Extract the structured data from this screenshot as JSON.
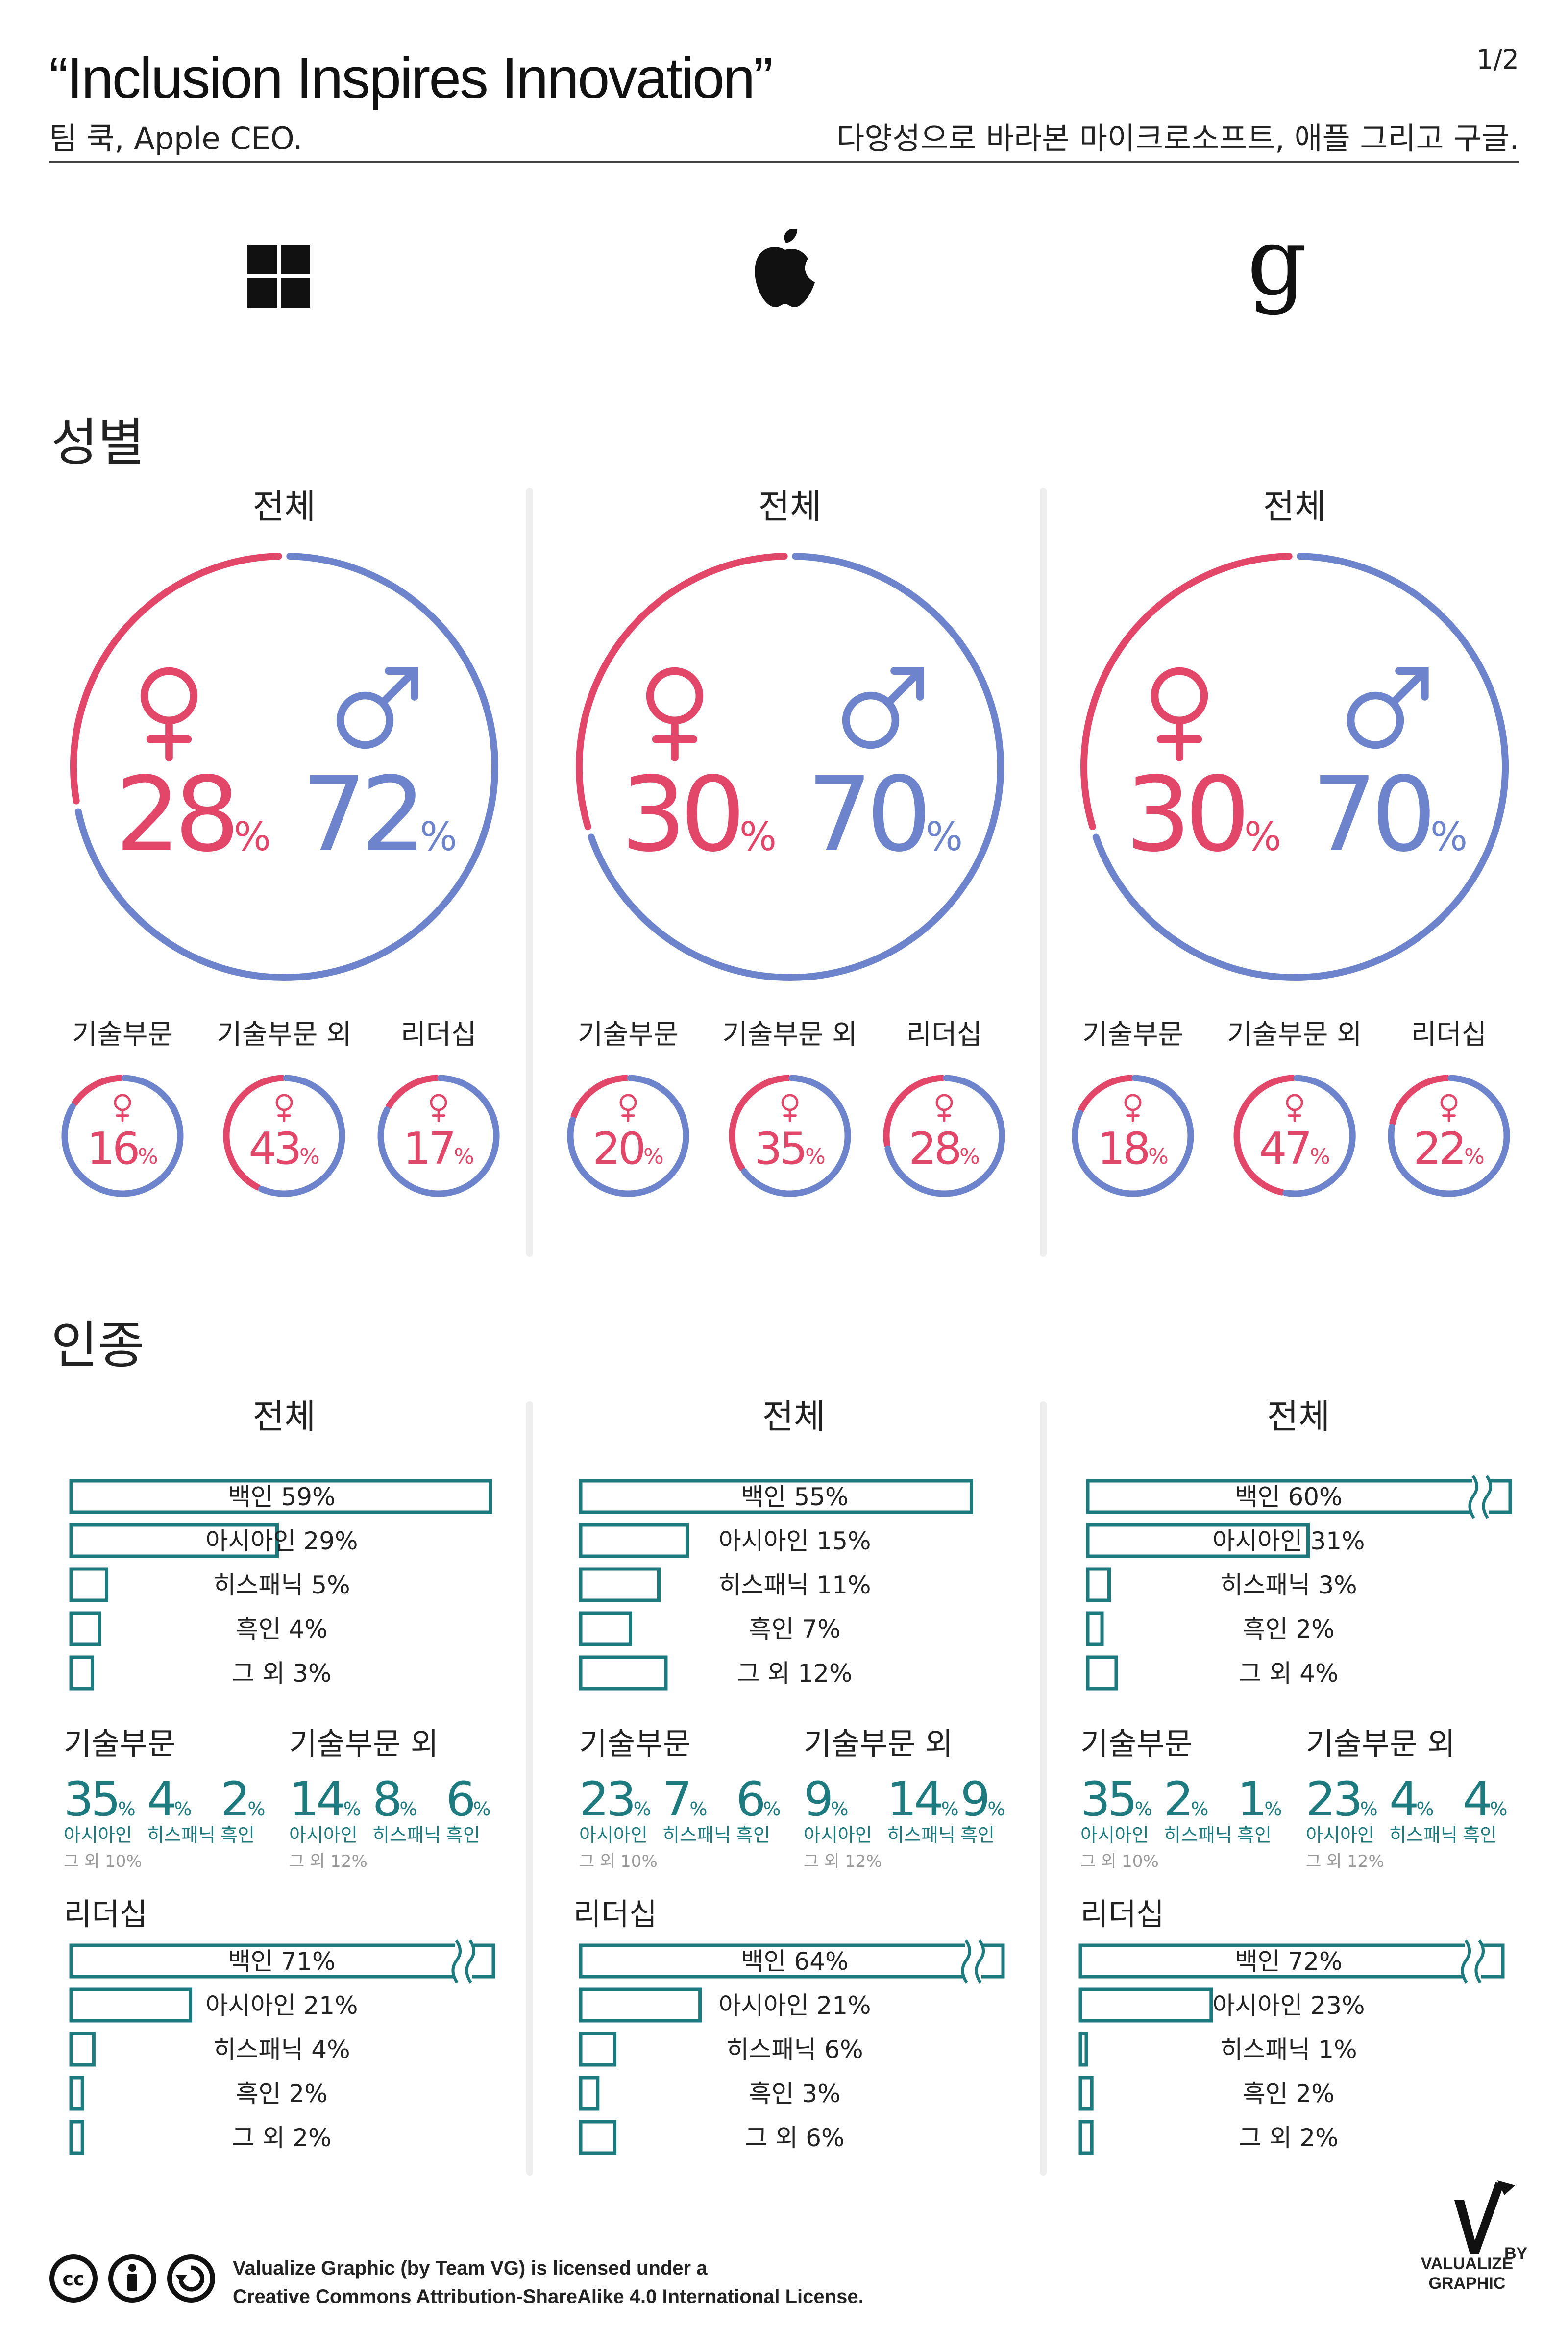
{
  "header": {
    "title": "“Inclusion Inspires Innovation”",
    "author": "팀 쿡, Apple CEO.",
    "page": "1/2",
    "subtitle": "다양성으로 바라본 마이크로소프트, 애플 그리고 구글."
  },
  "colors": {
    "female": "#e2476a",
    "male": "#6d84cc",
    "teal": "#1d7b80",
    "gray": "#9a9a9a"
  },
  "companies": [
    {
      "name": "Microsoft",
      "icon": "microsoft-windows-icon"
    },
    {
      "name": "Apple",
      "icon": "apple-logo-icon"
    },
    {
      "name": "Google",
      "icon": "google-g-icon",
      "glyph": "g"
    }
  ],
  "sections": {
    "gender": "성별",
    "race": "인종"
  },
  "labels": {
    "total": "전체",
    "tech": "기술부문",
    "nontech": "기술부문 외",
    "leadership": "리더십",
    "female_symbol": "♀",
    "male_symbol": "♂",
    "percent": "%"
  },
  "chart_data": [
    {
      "type": "pie",
      "title": "전체",
      "company": "Microsoft",
      "female": 28,
      "male": 72,
      "sub": [
        {
          "label": "기술부문",
          "female": 16
        },
        {
          "label": "기술부문 외",
          "female": 43
        },
        {
          "label": "리더십",
          "female": 17
        }
      ]
    },
    {
      "type": "pie",
      "title": "전체",
      "company": "Apple",
      "female": 30,
      "male": 70,
      "sub": [
        {
          "label": "기술부문",
          "female": 20
        },
        {
          "label": "기술부문 외",
          "female": 35
        },
        {
          "label": "리더십",
          "female": 28
        }
      ]
    },
    {
      "type": "pie",
      "title": "전체",
      "company": "Google",
      "female": 30,
      "male": 70,
      "sub": [
        {
          "label": "기술부문",
          "female": 18
        },
        {
          "label": "기술부문 외",
          "female": 47
        },
        {
          "label": "리더십",
          "female": 22
        }
      ]
    },
    {
      "type": "bar",
      "title": "전체",
      "company": "Microsoft",
      "broken": false,
      "categories": [
        "백인",
        "아시아인",
        "히스패닉",
        "흑인",
        "그 외"
      ],
      "values": [
        59,
        29,
        5,
        4,
        3
      ]
    },
    {
      "type": "bar",
      "title": "전체",
      "company": "Apple",
      "broken": false,
      "categories": [
        "백인",
        "아시아인",
        "히스패닉",
        "흑인",
        "그 외"
      ],
      "values": [
        55,
        15,
        11,
        7,
        12
      ]
    },
    {
      "type": "bar",
      "title": "전체",
      "company": "Google",
      "broken": true,
      "categories": [
        "백인",
        "아시아인",
        "히스패닉",
        "흑인",
        "그 외"
      ],
      "values": [
        60,
        31,
        3,
        2,
        4
      ]
    },
    {
      "type": "table",
      "company": "Microsoft",
      "tech": {
        "values": [
          35,
          4,
          2
        ],
        "names": [
          "아시아인",
          "히스패닉",
          "흑인"
        ],
        "other": "그 외 10%"
      },
      "nontech": {
        "values": [
          14,
          8,
          6
        ],
        "names": [
          "아시아인",
          "히스패닉",
          "흑인"
        ],
        "other": "그 외 12%"
      }
    },
    {
      "type": "table",
      "company": "Apple",
      "tech": {
        "values": [
          23,
          7,
          6
        ],
        "names": [
          "아시아인",
          "히스패닉",
          "흑인"
        ],
        "other": "그 외 10%"
      },
      "nontech": {
        "values": [
          9,
          14,
          9
        ],
        "names": [
          "아시아인",
          "히스패닉",
          "흑인"
        ],
        "other": "그 외 12%"
      }
    },
    {
      "type": "table",
      "company": "Google",
      "tech": {
        "values": [
          35,
          2,
          1
        ],
        "names": [
          "아시아인",
          "히스패닉",
          "흑인"
        ],
        "other": "그 외 10%"
      },
      "nontech": {
        "values": [
          23,
          4,
          4
        ],
        "names": [
          "아시아인",
          "히스패닉",
          "흑인"
        ],
        "other": "그 외 12%"
      }
    },
    {
      "type": "bar",
      "title": "리더십",
      "company": "Microsoft",
      "broken": true,
      "categories": [
        "백인",
        "아시아인",
        "히스패닉",
        "흑인",
        "그 외"
      ],
      "values": [
        71,
        21,
        4,
        2,
        2
      ]
    },
    {
      "type": "bar",
      "title": "리더십",
      "company": "Apple",
      "broken": true,
      "categories": [
        "백인",
        "아시아인",
        "히스패닉",
        "흑인",
        "그 외"
      ],
      "values": [
        64,
        21,
        6,
        3,
        6
      ]
    },
    {
      "type": "bar",
      "title": "리더십",
      "company": "Google",
      "broken": true,
      "categories": [
        "백인",
        "아시아인",
        "히스패닉",
        "흑인",
        "그 외"
      ],
      "values": [
        72,
        23,
        1,
        2,
        2
      ]
    }
  ],
  "footer": {
    "license_line1": "Valualize Graphic (by Team VG) is licensed under a",
    "license_line2": "Creative Commons Attribution-ShareAlike 4.0 International License.",
    "cc_icons": [
      "cc-icon",
      "attribution-icon",
      "sharealike-icon"
    ],
    "brand_by": "BY",
    "brand_line1": "VALUALIZE",
    "brand_line2": "GRAPHIC"
  }
}
